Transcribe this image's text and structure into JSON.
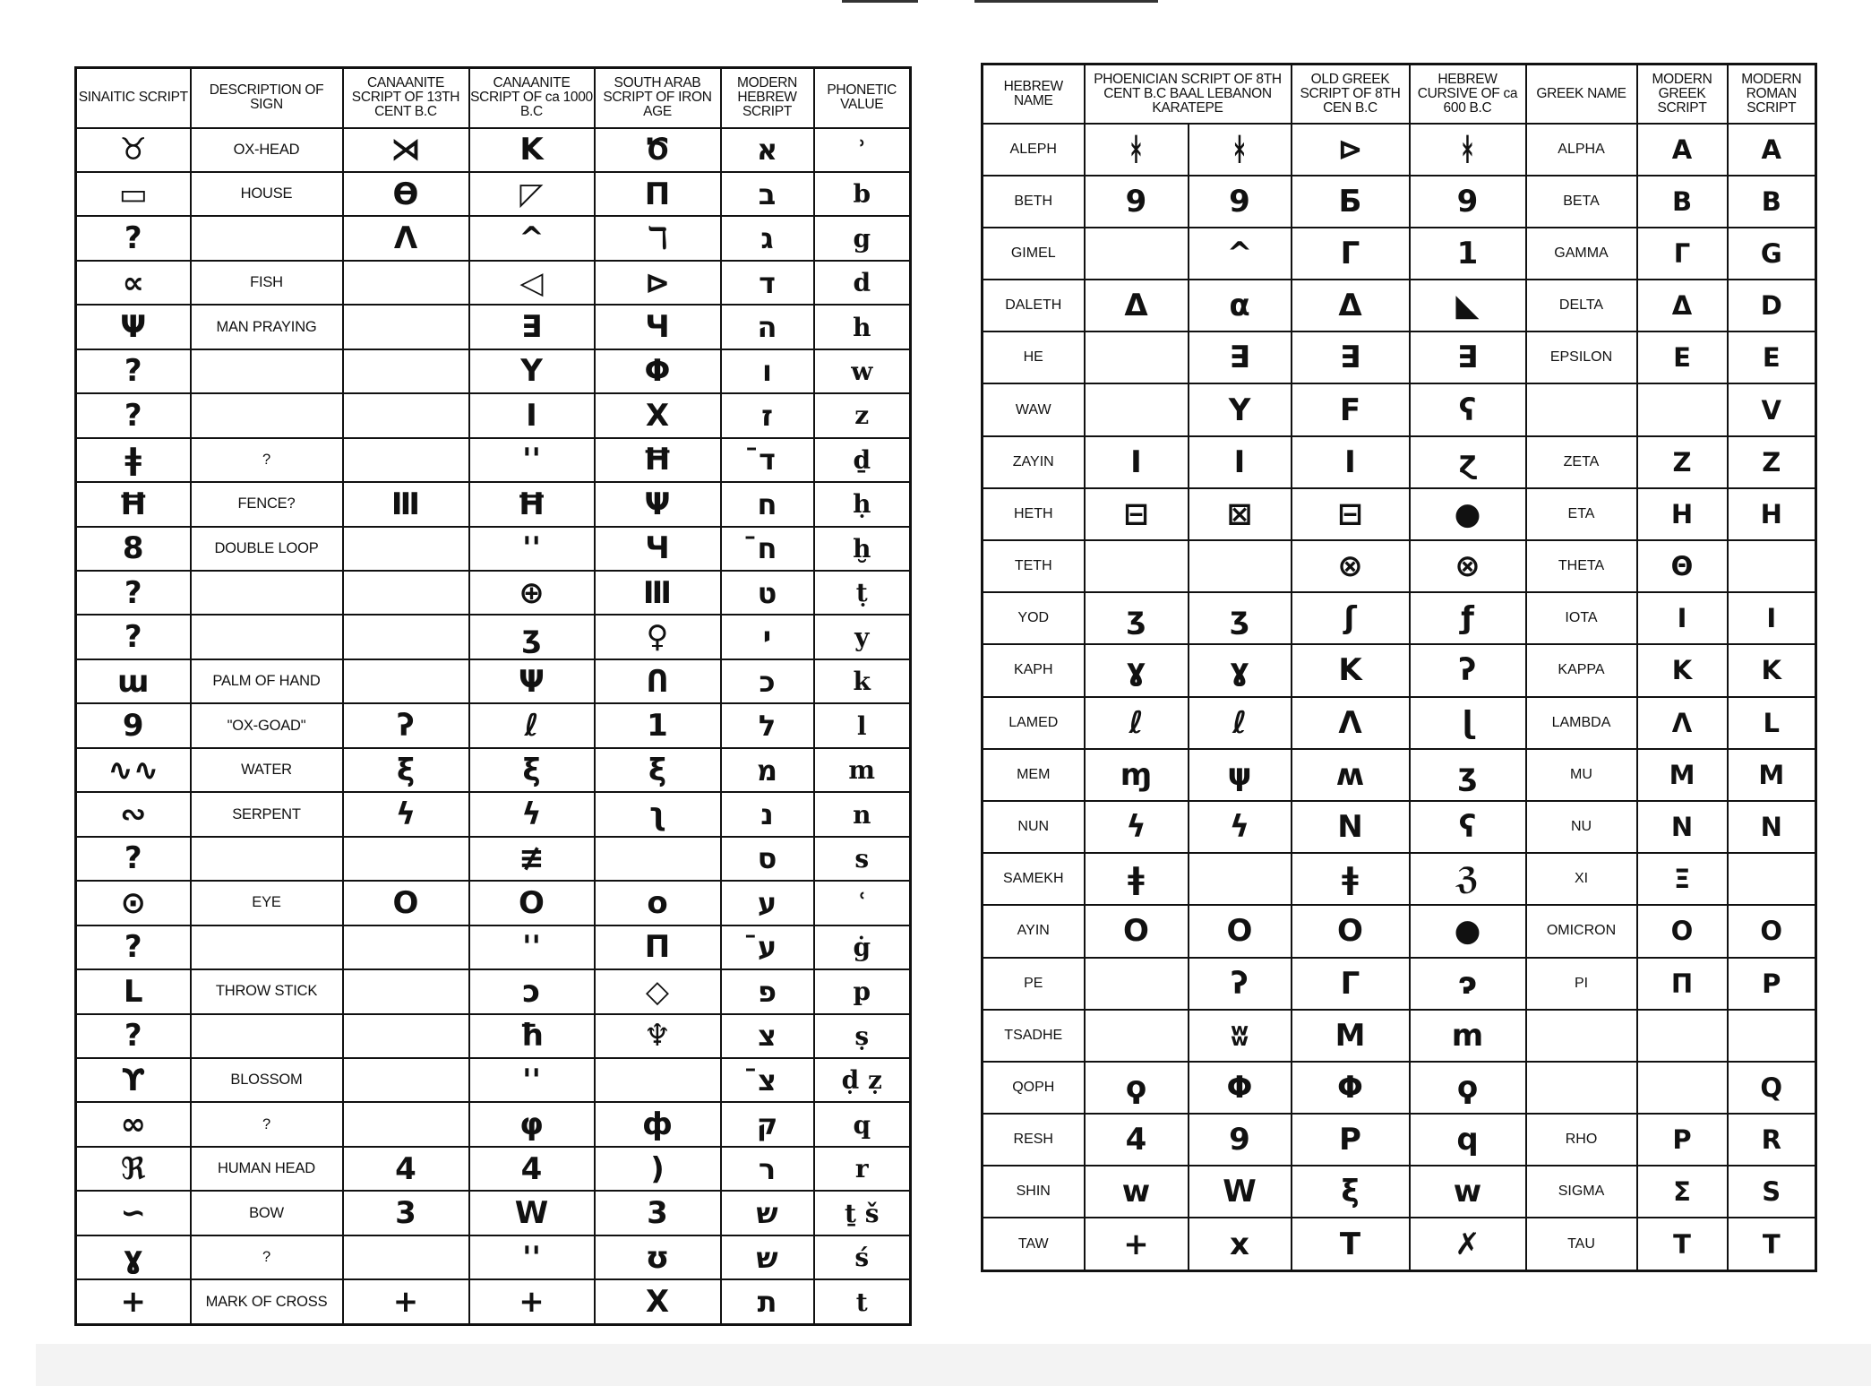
{
  "left_table": {
    "headers": [
      "SINAITIC SCRIPT",
      "DESCRIPTION OF SIGN",
      "CANAANITE SCRIPT OF 13TH CENT B.C",
      "CANAANITE SCRIPT OF ca 1000 B.C",
      "SOUTH ARAB SCRIPT OF IRON AGE",
      "MODERN HEBREW SCRIPT",
      "PHONETIC VALUE"
    ],
    "rows": [
      {
        "sinaitic": "♉",
        "description": "OX-HEAD",
        "canaanite_13th": "⋊",
        "canaanite_1000": "K",
        "south_arab": "Ծ",
        "hebrew": "א",
        "phonetic": "ʾ"
      },
      {
        "sinaitic": "▭",
        "description": "HOUSE",
        "canaanite_13th": "Ө",
        "canaanite_1000": "◸",
        "south_arab": "Π",
        "hebrew": "ב",
        "phonetic": "b"
      },
      {
        "sinaitic": "?",
        "description": "",
        "canaanite_13th": "Λ",
        "canaanite_1000": "^",
        "south_arab": "ℸ",
        "hebrew": "ג",
        "phonetic": "g"
      },
      {
        "sinaitic": "∝",
        "description": "FISH",
        "canaanite_13th": "",
        "canaanite_1000": "◁",
        "south_arab": "⊳",
        "hebrew": "ד",
        "phonetic": "d"
      },
      {
        "sinaitic": "Ψ",
        "description": "MAN PRAYING",
        "canaanite_13th": "",
        "canaanite_1000": "∃",
        "south_arab": "Ч",
        "hebrew": "ה",
        "phonetic": "h"
      },
      {
        "sinaitic": "?",
        "description": "",
        "canaanite_13th": "",
        "canaanite_1000": "Y",
        "south_arab": "Φ",
        "hebrew": "ו",
        "phonetic": "w"
      },
      {
        "sinaitic": "?",
        "description": "",
        "canaanite_13th": "",
        "canaanite_1000": "I",
        "south_arab": "Χ",
        "hebrew": "ז",
        "phonetic": "z"
      },
      {
        "sinaitic": "ǂ",
        "description": "?",
        "canaanite_13th": "",
        "canaanite_1000": "''",
        "south_arab": "Ħ",
        "hebrew": "ד̄",
        "phonetic": "ḏ"
      },
      {
        "sinaitic": "Ħ",
        "description": "FENCE?",
        "canaanite_13th": "Ⅲ",
        "canaanite_1000": "Ħ",
        "south_arab": "Ψ",
        "hebrew": "ח",
        "phonetic": "ḥ"
      },
      {
        "sinaitic": "8",
        "description": "DOUBLE LOOP",
        "canaanite_13th": "",
        "canaanite_1000": "''",
        "south_arab": "Ч",
        "hebrew": "ח̄",
        "phonetic": "ḫ"
      },
      {
        "sinaitic": "?",
        "description": "",
        "canaanite_13th": "",
        "canaanite_1000": "⊕",
        "south_arab": "Ⅲ",
        "hebrew": "ט",
        "phonetic": "ṭ"
      },
      {
        "sinaitic": "?",
        "description": "",
        "canaanite_13th": "",
        "canaanite_1000": "ʒ",
        "south_arab": "♀",
        "hebrew": "י",
        "phonetic": "y"
      },
      {
        "sinaitic": "ɯ",
        "description": "PALM OF HAND",
        "canaanite_13th": "",
        "canaanite_1000": "Ψ",
        "south_arab": "Ո",
        "hebrew": "כ",
        "phonetic": "k"
      },
      {
        "sinaitic": "9",
        "description": "\"OX-GOAD\"",
        "canaanite_13th": "ʔ",
        "canaanite_1000": "ℓ",
        "south_arab": "1",
        "hebrew": "ל",
        "phonetic": "l"
      },
      {
        "sinaitic": "∿∿",
        "description": "WATER",
        "canaanite_13th": "ξ",
        "canaanite_1000": "ξ",
        "south_arab": "ξ",
        "hebrew": "מ",
        "phonetic": "m"
      },
      {
        "sinaitic": "∾",
        "description": "SERPENT",
        "canaanite_13th": "ϟ",
        "canaanite_1000": "ϟ",
        "south_arab": "ʅ",
        "hebrew": "נ",
        "phonetic": "n"
      },
      {
        "sinaitic": "?",
        "description": "",
        "canaanite_13th": "",
        "canaanite_1000": "≢",
        "south_arab": "",
        "hebrew": "ס",
        "phonetic": "s"
      },
      {
        "sinaitic": "⊙",
        "description": "EYE",
        "canaanite_13th": "O",
        "canaanite_1000": "O",
        "south_arab": "o",
        "hebrew": "ע",
        "phonetic": "ʿ"
      },
      {
        "sinaitic": "?",
        "description": "",
        "canaanite_13th": "",
        "canaanite_1000": "''",
        "south_arab": "Π",
        "hebrew": "ע̄",
        "phonetic": "ġ"
      },
      {
        "sinaitic": "L",
        "description": "THROW STICK",
        "canaanite_13th": "",
        "canaanite_1000": "ↄ",
        "south_arab": "◇",
        "hebrew": "פ",
        "phonetic": "p"
      },
      {
        "sinaitic": "?",
        "description": "",
        "canaanite_13th": "",
        "canaanite_1000": "ħ",
        "south_arab": "♆",
        "hebrew": "צ",
        "phonetic": "ṣ"
      },
      {
        "sinaitic": "ϒ",
        "description": "BLOSSOM",
        "canaanite_13th": "",
        "canaanite_1000": "''",
        "south_arab": "",
        "hebrew": "צ̄",
        "phonetic": "ḍ ẓ"
      },
      {
        "sinaitic": "∞",
        "description": "?",
        "canaanite_13th": "",
        "canaanite_1000": "φ",
        "south_arab": "ф",
        "hebrew": "ק",
        "phonetic": "q"
      },
      {
        "sinaitic": "ℜ",
        "description": "HUMAN HEAD",
        "canaanite_13th": "4",
        "canaanite_1000": "4",
        "south_arab": ")",
        "hebrew": "ר",
        "phonetic": "r"
      },
      {
        "sinaitic": "∽",
        "description": "BOW",
        "canaanite_13th": "3",
        "canaanite_1000": "W",
        "south_arab": "3",
        "hebrew": "ש",
        "phonetic": "ṯ š"
      },
      {
        "sinaitic": "ɣ",
        "description": "?",
        "canaanite_13th": "",
        "canaanite_1000": "''",
        "south_arab": "ʊ",
        "hebrew": "ש",
        "phonetic": "ś"
      },
      {
        "sinaitic": "+",
        "description": "MARK OF CROSS",
        "canaanite_13th": "+",
        "canaanite_1000": "+",
        "south_arab": "X",
        "hebrew": "ת",
        "phonetic": "t"
      }
    ]
  },
  "right_table": {
    "headers": [
      "HEBREW NAME",
      "PHOENICIAN SCRIPT OF 8TH CENT B.C BAAL LEBANON KARATEPE",
      "OLD GREEK SCRIPT OF 8TH CEN B.C",
      "HEBREW CURSIVE OF ca 600 B.C",
      "GREEK NAME",
      "MODERN GREEK SCRIPT",
      "MODERN ROMAN SCRIPT"
    ],
    "rows": [
      {
        "hebrew_name": "ALEPH",
        "phoenician_baal_lebanon": "ᚼ",
        "phoenician_karatepe": "ᚼ",
        "old_greek": "⊳",
        "hebrew_cursive": "ᚼ",
        "greek_name": "ALPHA",
        "modern_greek": "Α",
        "modern_roman": "A"
      },
      {
        "hebrew_name": "BETH",
        "phoenician_baal_lebanon": "9",
        "phoenician_karatepe": "9",
        "old_greek": "Б",
        "hebrew_cursive": "9",
        "greek_name": "BETA",
        "modern_greek": "Β",
        "modern_roman": "B"
      },
      {
        "hebrew_name": "GIMEL",
        "phoenician_baal_lebanon": "",
        "phoenician_karatepe": "^",
        "old_greek": "Γ",
        "hebrew_cursive": "1",
        "greek_name": "GAMMA",
        "modern_greek": "Γ",
        "modern_roman": "G"
      },
      {
        "hebrew_name": "DALETH",
        "phoenician_baal_lebanon": "Δ",
        "phoenician_karatepe": "α",
        "old_greek": "Δ",
        "hebrew_cursive": "◣",
        "greek_name": "DELTA",
        "modern_greek": "Δ",
        "modern_roman": "D"
      },
      {
        "hebrew_name": "HE",
        "phoenician_baal_lebanon": "",
        "phoenician_karatepe": "∃",
        "old_greek": "∃",
        "hebrew_cursive": "∃",
        "greek_name": "EPSILON",
        "modern_greek": "Ε",
        "modern_roman": "E"
      },
      {
        "hebrew_name": "WAW",
        "phoenician_baal_lebanon": "",
        "phoenician_karatepe": "Y",
        "old_greek": "F",
        "hebrew_cursive": "ʕ",
        "greek_name": "",
        "modern_greek": "",
        "modern_roman": "V"
      },
      {
        "hebrew_name": "ZAYIN",
        "phoenician_baal_lebanon": "I",
        "phoenician_karatepe": "I",
        "old_greek": "I",
        "hebrew_cursive": "ɀ",
        "greek_name": "ZETA",
        "modern_greek": "Ζ",
        "modern_roman": "Z"
      },
      {
        "hebrew_name": "HETH",
        "phoenician_baal_lebanon": "⊟",
        "phoenician_karatepe": "⊠",
        "old_greek": "⊟",
        "hebrew_cursive": "●",
        "greek_name": "ETA",
        "modern_greek": "Η",
        "modern_roman": "H"
      },
      {
        "hebrew_name": "TETH",
        "phoenician_baal_lebanon": "",
        "phoenician_karatepe": "",
        "old_greek": "⊗",
        "hebrew_cursive": "⊗",
        "greek_name": "THETA",
        "modern_greek": "Θ",
        "modern_roman": ""
      },
      {
        "hebrew_name": "YOD",
        "phoenician_baal_lebanon": "ʒ",
        "phoenician_karatepe": "ʒ",
        "old_greek": "ʃ",
        "hebrew_cursive": "ƒ",
        "greek_name": "IOTA",
        "modern_greek": "Ι",
        "modern_roman": "I"
      },
      {
        "hebrew_name": "KAPH",
        "phoenician_baal_lebanon": "ɣ",
        "phoenician_karatepe": "ɣ",
        "old_greek": "K",
        "hebrew_cursive": "ʔ",
        "greek_name": "KAPPA",
        "modern_greek": "Κ",
        "modern_roman": "K"
      },
      {
        "hebrew_name": "LAMED",
        "phoenician_baal_lebanon": "ℓ",
        "phoenician_karatepe": "ℓ",
        "old_greek": "Λ",
        "hebrew_cursive": "ɭ",
        "greek_name": "LAMBDA",
        "modern_greek": "Λ",
        "modern_roman": "L"
      },
      {
        "hebrew_name": "MEM",
        "phoenician_baal_lebanon": "ɱ",
        "phoenician_karatepe": "ψ",
        "old_greek": "ʍ",
        "hebrew_cursive": "ʒ",
        "greek_name": "MU",
        "modern_greek": "Μ",
        "modern_roman": "M"
      },
      {
        "hebrew_name": "NUN",
        "phoenician_baal_lebanon": "ϟ",
        "phoenician_karatepe": "ϟ",
        "old_greek": "N",
        "hebrew_cursive": "ʕ",
        "greek_name": "NU",
        "modern_greek": "Ν",
        "modern_roman": "N"
      },
      {
        "hebrew_name": "SAMEKH",
        "phoenician_baal_lebanon": "ǂ",
        "phoenician_karatepe": "",
        "old_greek": "ǂ",
        "hebrew_cursive": "ℨ",
        "greek_name": "XI",
        "modern_greek": "Ξ",
        "modern_roman": ""
      },
      {
        "hebrew_name": "AYIN",
        "phoenician_baal_lebanon": "O",
        "phoenician_karatepe": "O",
        "old_greek": "O",
        "hebrew_cursive": "●",
        "greek_name": "OMICRON",
        "modern_greek": "Ο",
        "modern_roman": "O"
      },
      {
        "hebrew_name": "PE",
        "phoenician_baal_lebanon": "",
        "phoenician_karatepe": "ʔ",
        "old_greek": "Γ",
        "hebrew_cursive": "ɂ",
        "greek_name": "PI",
        "modern_greek": "Π",
        "modern_roman": "P"
      },
      {
        "hebrew_name": "TSADHE",
        "phoenician_baal_lebanon": "",
        "phoenician_karatepe": "ʬ",
        "old_greek": "M",
        "hebrew_cursive": "m",
        "greek_name": "",
        "modern_greek": "",
        "modern_roman": ""
      },
      {
        "hebrew_name": "QOPH",
        "phoenician_baal_lebanon": "ϙ",
        "phoenician_karatepe": "Φ",
        "old_greek": "Φ",
        "hebrew_cursive": "ϙ",
        "greek_name": "",
        "modern_greek": "",
        "modern_roman": "Q"
      },
      {
        "hebrew_name": "RESH",
        "phoenician_baal_lebanon": "4",
        "phoenician_karatepe": "9",
        "old_greek": "P",
        "hebrew_cursive": "q",
        "greek_name": "RHO",
        "modern_greek": "Ρ",
        "modern_roman": "R"
      },
      {
        "hebrew_name": "SHIN",
        "phoenician_baal_lebanon": "w",
        "phoenician_karatepe": "W",
        "old_greek": "ξ",
        "hebrew_cursive": "w",
        "greek_name": "SIGMA",
        "modern_greek": "Σ",
        "modern_roman": "S"
      },
      {
        "hebrew_name": "TAW",
        "phoenician_baal_lebanon": "+",
        "phoenician_karatepe": "x",
        "old_greek": "T",
        "hebrew_cursive": "✗",
        "greek_name": "TAU",
        "modern_greek": "Τ",
        "modern_roman": "T"
      }
    ]
  }
}
